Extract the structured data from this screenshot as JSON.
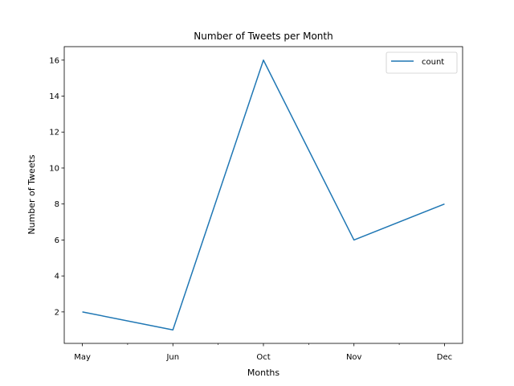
{
  "chart_data": {
    "type": "line",
    "title": "Number of Tweets per Month",
    "xlabel": "Months",
    "ylabel": "Number of Tweets",
    "categories": [
      "May",
      "Jun",
      "Oct",
      "Nov",
      "Dec"
    ],
    "series": [
      {
        "name": "count",
        "values": [
          2,
          1,
          16,
          6,
          8
        ],
        "color": "#1f77b4"
      }
    ],
    "yticks": [
      2,
      4,
      6,
      8,
      10,
      12,
      14,
      16
    ],
    "ylim": [
      0.25,
      16.75
    ],
    "xlim": [
      -0.2,
      4.2
    ],
    "grid": false,
    "legend": "top-right"
  }
}
